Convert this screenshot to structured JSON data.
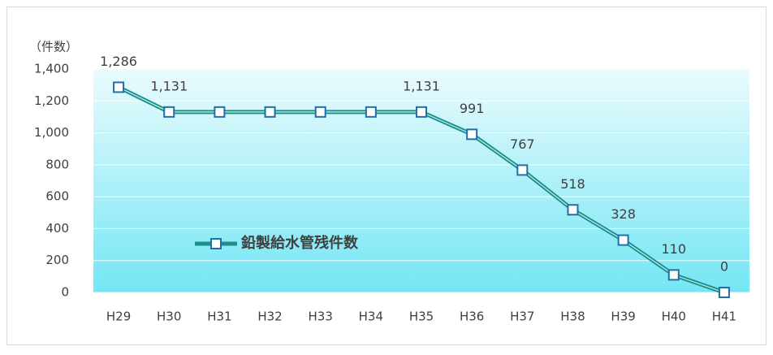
{
  "chart_data": {
    "type": "line",
    "y_label": "（件数）",
    "categories": [
      "H29",
      "H30",
      "H31",
      "H32",
      "H33",
      "H34",
      "H35",
      "H36",
      "H37",
      "H38",
      "H39",
      "H40",
      "H41"
    ],
    "series": [
      {
        "name": "鉛製給水管残件数",
        "color": "#1f8f8c",
        "marker_edge": "#1f6fa8",
        "values": [
          1286,
          1131,
          1131,
          1131,
          1131,
          1131,
          1131,
          991,
          767,
          518,
          328,
          110,
          0
        ],
        "value_labels": [
          "1,286",
          "1,131",
          null,
          null,
          null,
          null,
          "1,131",
          "991",
          "767",
          "518",
          "328",
          "110",
          "0"
        ]
      }
    ],
    "ylim": [
      0,
      1400
    ],
    "yticks": [
      0,
      200,
      400,
      600,
      800,
      {
        "value": 1000,
        "label": "1,000"
      },
      {
        "value": 1200,
        "label": "1,200"
      },
      {
        "value": 1400,
        "label": "1,400"
      }
    ],
    "grid": true
  }
}
